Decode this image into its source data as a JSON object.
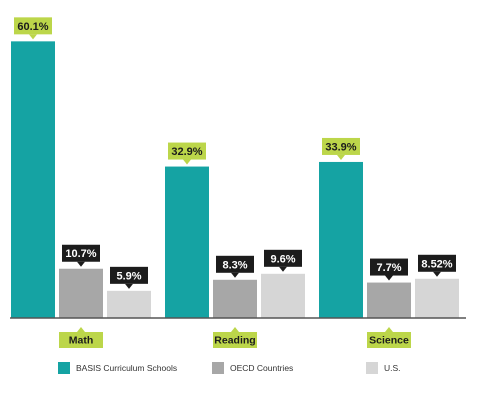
{
  "chart_data": {
    "type": "bar",
    "categories": [
      "Math",
      "Reading",
      "Science"
    ],
    "series": [
      {
        "name": "BASIS Curriculum Schools",
        "values": [
          60.1,
          32.9,
          33.9
        ],
        "labels": [
          "60.1%",
          "32.9%",
          "33.9%"
        ],
        "color": "#15a3a3"
      },
      {
        "name": "OECD Countries",
        "values": [
          10.7,
          8.3,
          7.7
        ],
        "labels": [
          "10.7%",
          "8.3%",
          "7.7%"
        ],
        "color": "#a7a7a7"
      },
      {
        "name": "U.S.",
        "values": [
          5.9,
          9.6,
          8.52
        ],
        "labels": [
          "5.9%",
          "9.6%",
          "8.52%"
        ],
        "color": "#d6d6d6"
      }
    ],
    "ylim": [
      0,
      63
    ],
    "grid": false,
    "legend": "bottom",
    "colors": {
      "value_label_bg": "#1c1c1c",
      "accent_label_bg": "#bcd64a",
      "axis": "#555555"
    }
  }
}
